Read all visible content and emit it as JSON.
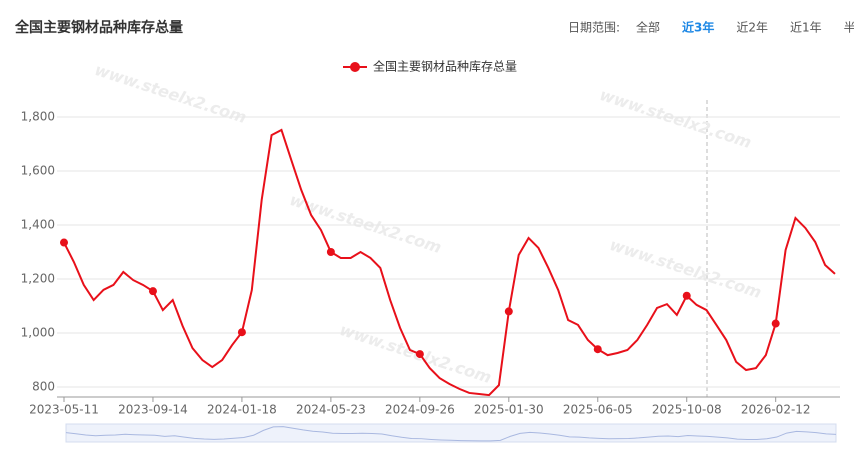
{
  "chart_data": {
    "type": "line",
    "title": "全国主要钢材品种库存总量",
    "range_label": "日期范围:",
    "range_options": [
      "全部",
      "近3年",
      "近2年",
      "近1年",
      "半年"
    ],
    "active_range": "近3年",
    "watermark": "www.steelx2.com",
    "categories": [
      "2023-05-11",
      null,
      null,
      null,
      null,
      null,
      null,
      null,
      null,
      "2023-09-14",
      null,
      null,
      null,
      null,
      null,
      null,
      null,
      null,
      "2024-01-18",
      null,
      null,
      null,
      null,
      null,
      null,
      null,
      null,
      "2024-05-23",
      null,
      null,
      null,
      null,
      null,
      null,
      null,
      null,
      "2024-09-26",
      null,
      null,
      null,
      null,
      null,
      null,
      null,
      null,
      "2025-01-30",
      null,
      null,
      null,
      null,
      null,
      null,
      null,
      null,
      "2025-06-05",
      null,
      null,
      null,
      null,
      null,
      null,
      null,
      null,
      "2025-10-08",
      null,
      null,
      null,
      null,
      null,
      null,
      null,
      null,
      "2026-02-12",
      null,
      null,
      null,
      null,
      null,
      null
    ],
    "series": [
      {
        "name": "全国主要钢材品种库存总量",
        "color": "#e8101a",
        "values": [
          1335,
          1263,
          1178,
          1122,
          1160,
          1178,
          1226,
          1196,
          1178,
          1155,
          1085,
          1122,
          1026,
          944,
          900,
          874,
          900,
          955,
          1003,
          1159,
          1493,
          1733,
          1752,
          1640,
          1530,
          1437,
          1381,
          1300,
          1278,
          1278,
          1300,
          1278,
          1241,
          1122,
          1019,
          937,
          922,
          870,
          833,
          811,
          793,
          778,
          774,
          770,
          807,
          1080,
          1289,
          1352,
          1315,
          1241,
          1159,
          1048,
          1030,
          974,
          940,
          918,
          926,
          937,
          974,
          1030,
          1093,
          1107,
          1067,
          1138,
          1104,
          1085,
          1030,
          974,
          893,
          863,
          870,
          918,
          1035,
          1307,
          1426,
          1389,
          1337,
          1252,
          1219
        ]
      }
    ],
    "ylim": [
      763,
      1863
    ],
    "yticks": [
      {
        "value": 800,
        "label": "800"
      },
      {
        "value": 1000,
        "label": "1,000"
      },
      {
        "value": 1200,
        "label": "1,200"
      },
      {
        "value": 1400,
        "label": "1,400"
      },
      {
        "value": 1600,
        "label": "1,600"
      },
      {
        "value": 1800,
        "label": "1,800"
      }
    ],
    "grid": true
  }
}
